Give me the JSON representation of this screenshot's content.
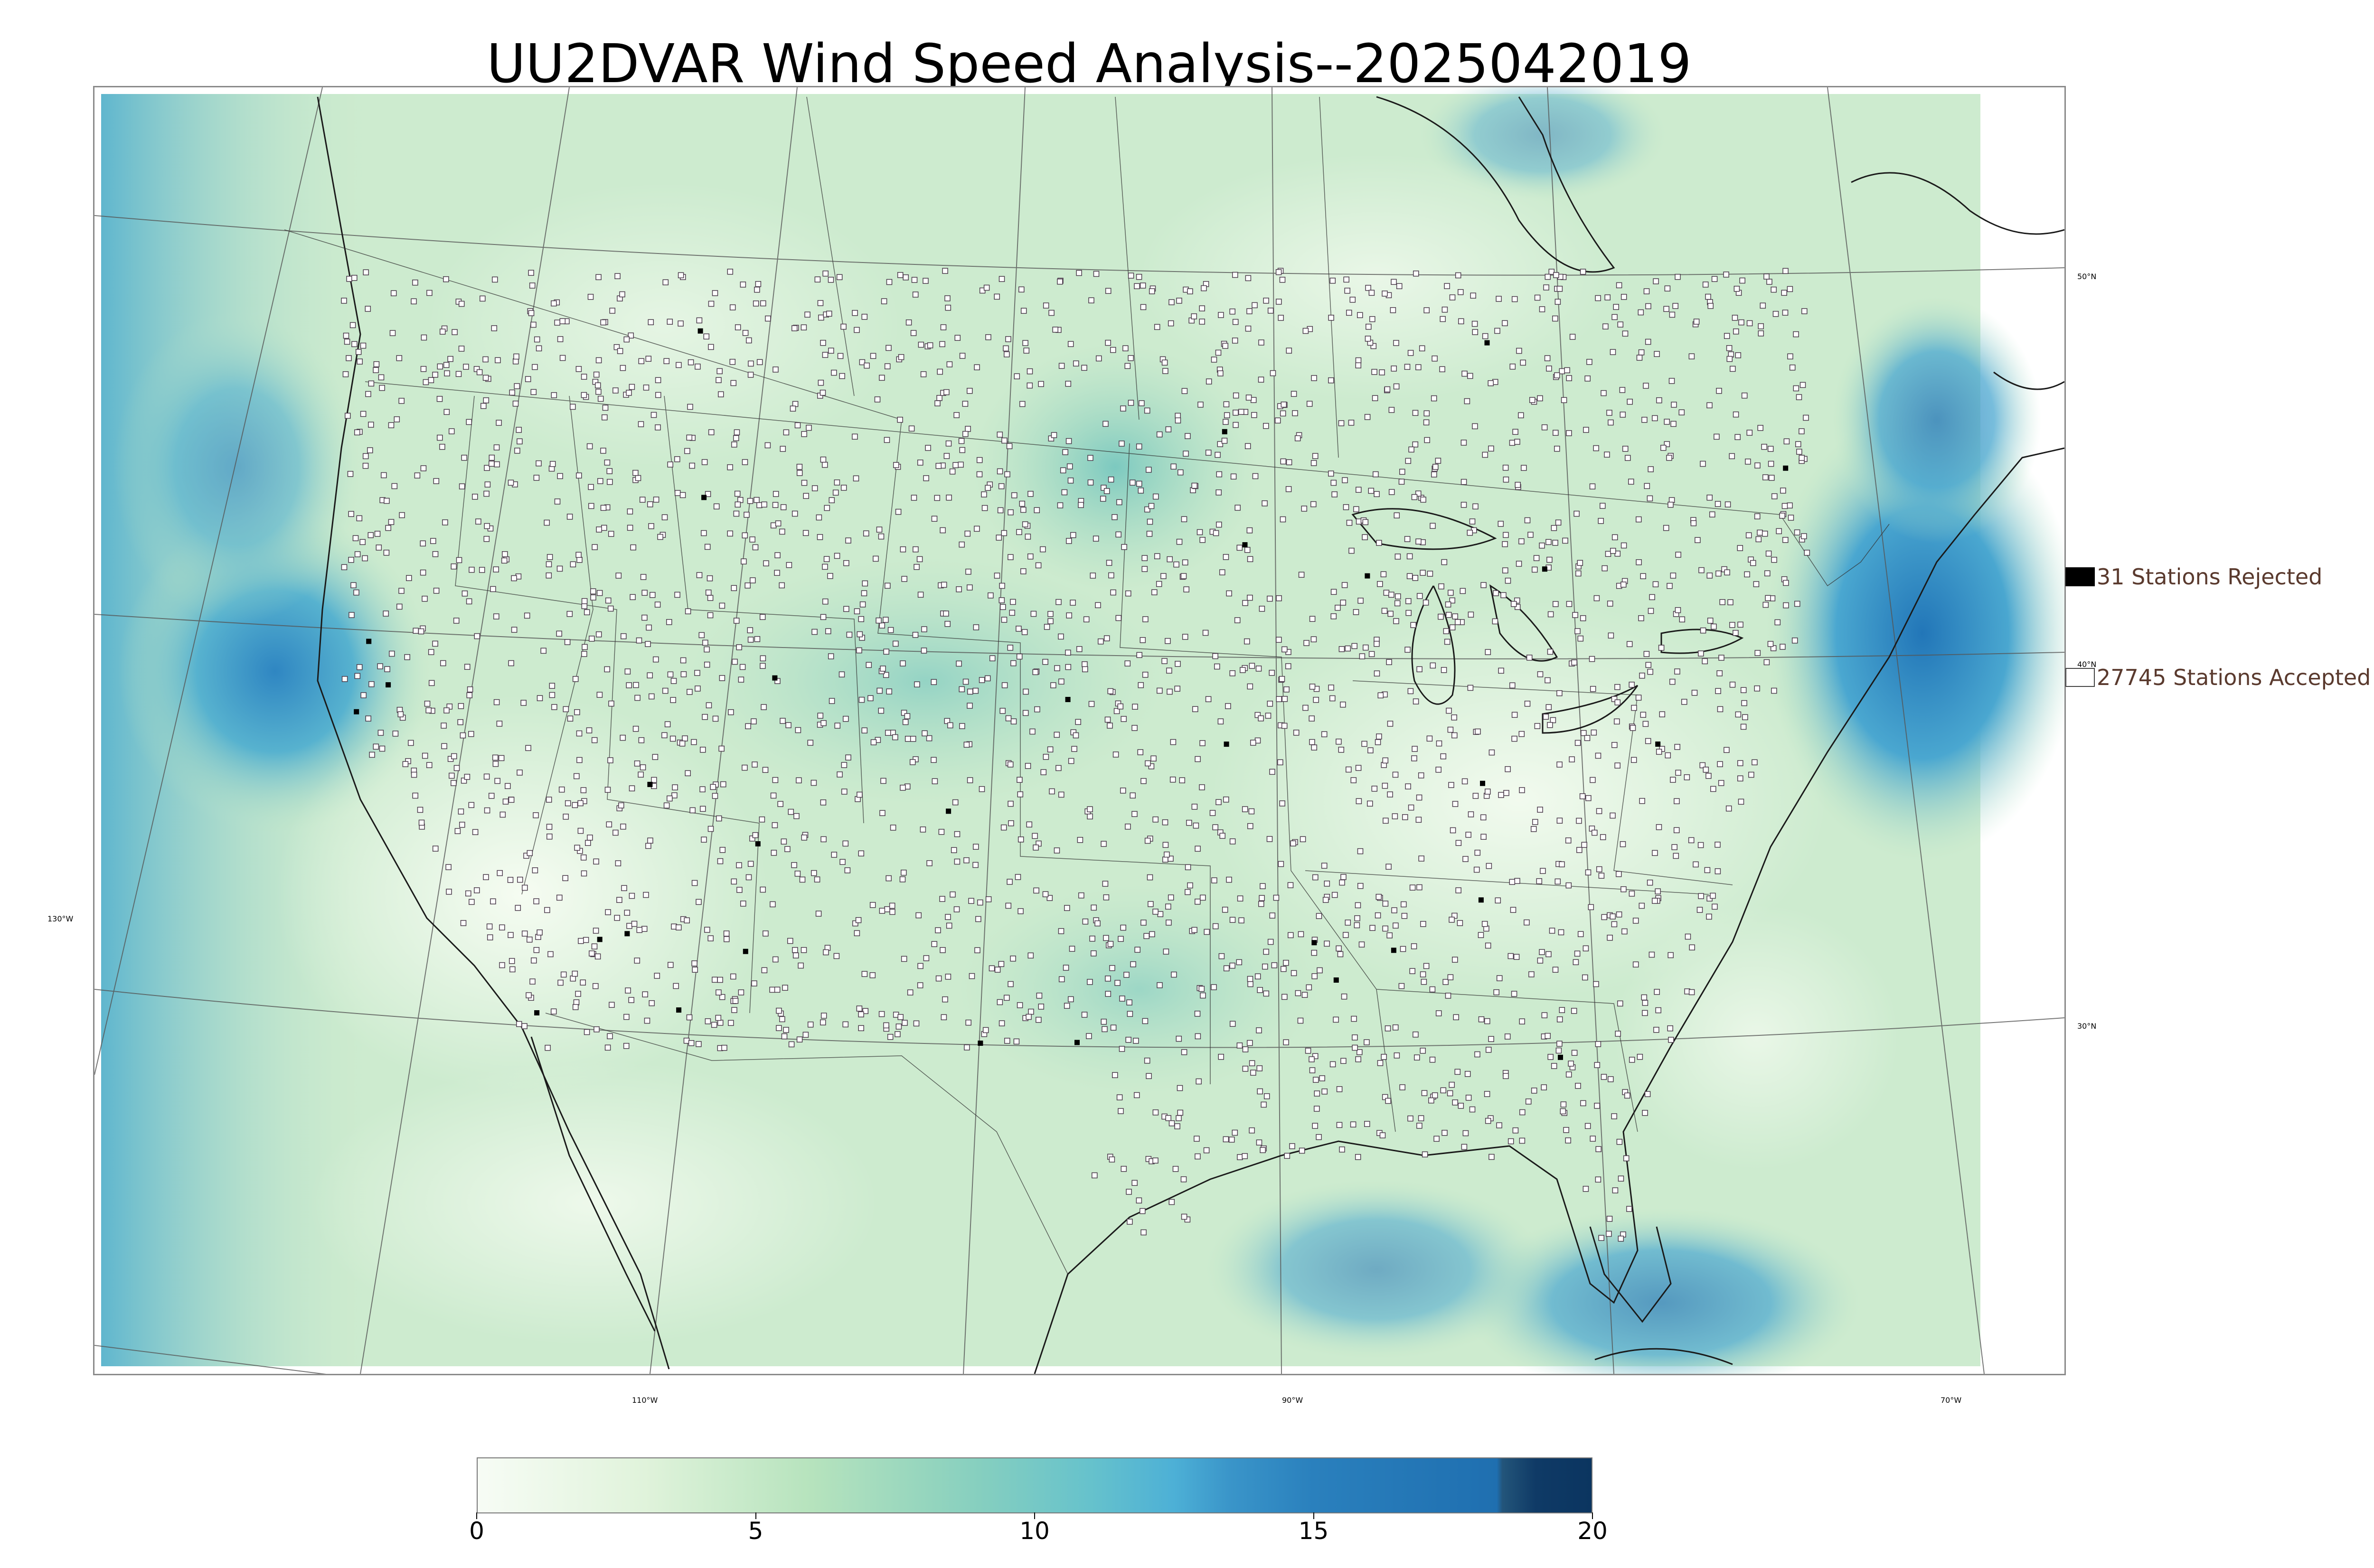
{
  "title": "UU2DVAR Wind Speed Analysis--2025042019",
  "map": {
    "latitude_labels": [
      {
        "text": "50°N",
        "lat": 50
      },
      {
        "text": "40°N",
        "lat": 40
      },
      {
        "text": "30°N",
        "lat": 30
      }
    ],
    "longitude_labels": [
      {
        "text": "130°W",
        "lon": -130
      },
      {
        "text": "110°W",
        "lon": -110
      },
      {
        "text": "90°W",
        "lon": -90
      },
      {
        "text": "70°W",
        "lon": -70
      }
    ],
    "colors": {
      "ocean_strong": "#3d8fc6",
      "land_base": "#dff2d8",
      "calm": "#f4fbf0",
      "moderate": "#a8dcb8",
      "station_accepted_fill": "#ffffff",
      "station_accepted_edge": "#4a3a4a",
      "station_rejected": "#000000"
    }
  },
  "legend": {
    "rejected": {
      "label": "31 Stations Rejected",
      "count": 31
    },
    "accepted": {
      "label": "27745 Stations Accepted",
      "count": 27745
    }
  },
  "colorbar": {
    "min": 0,
    "max": 20,
    "ticks": [
      "0",
      "5",
      "10",
      "15",
      "20"
    ],
    "stops": [
      {
        "value": 0,
        "color": "#f7fcf5"
      },
      {
        "value": 3,
        "color": "#e0f3db"
      },
      {
        "value": 6,
        "color": "#b6e3bd"
      },
      {
        "value": 9,
        "color": "#86cfbf"
      },
      {
        "value": 11,
        "color": "#66c2cc"
      },
      {
        "value": 12.5,
        "color": "#4db0d6"
      },
      {
        "value": 13.5,
        "color": "#3a95c9"
      },
      {
        "value": 15,
        "color": "#2a80bd"
      },
      {
        "value": 18.3,
        "color": "#1f6fb0"
      },
      {
        "value": 18.4,
        "color": "#23557a"
      },
      {
        "value": 19,
        "color": "#0f3a66"
      },
      {
        "value": 20,
        "color": "#0b3560"
      }
    ]
  }
}
